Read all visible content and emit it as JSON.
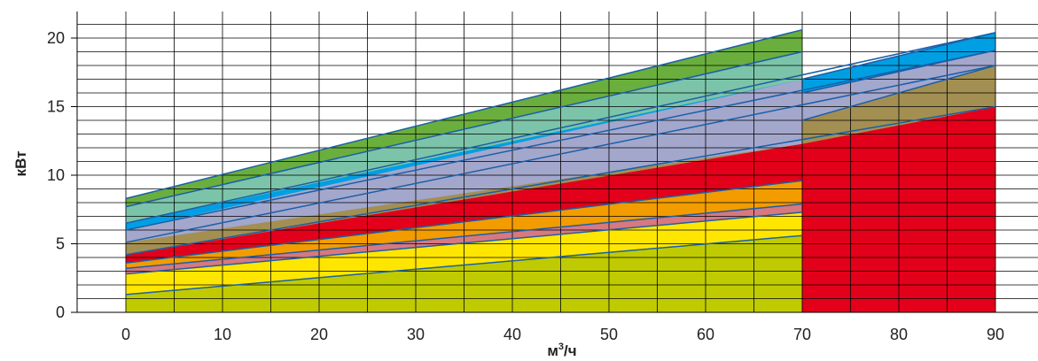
{
  "chart_data": {
    "type": "area",
    "ylabel": "кВт",
    "xlabel_base": "м",
    "xlabel_sup": "3",
    "xlabel_tail": "/ч",
    "xlim": [
      0,
      95
    ],
    "ylim": [
      0,
      20
    ],
    "x_ticks": [
      0,
      10,
      20,
      30,
      40,
      50,
      60,
      70,
      80,
      90
    ],
    "y_ticks": [
      0,
      5,
      10,
      15,
      20
    ],
    "grid": true,
    "bands": [
      {
        "color": "#bfcb00",
        "x": [
          0,
          70
        ],
        "lower": [
          0,
          0
        ],
        "upper": [
          1.3,
          5.6
        ]
      },
      {
        "color": "#ffe600",
        "x": [
          0,
          70
        ],
        "lower": [
          1.3,
          5.6
        ],
        "upper": [
          2.8,
          7.3
        ]
      },
      {
        "color": "#d8787f",
        "x": [
          0,
          70
        ],
        "lower": [
          2.8,
          7.3
        ],
        "upper": [
          3.2,
          7.9
        ]
      },
      {
        "color": "#f29c00",
        "x": [
          0,
          70
        ],
        "lower": [
          3.2,
          7.9
        ],
        "upper": [
          3.6,
          9.6
        ]
      },
      {
        "color": "#e2001a",
        "x": [
          0,
          70
        ],
        "lower": [
          3.6,
          9.6
        ],
        "upper": [
          4.2,
          12.3
        ]
      },
      {
        "color": "#a38f52",
        "x": [
          0,
          70
        ],
        "lower": [
          4.2,
          12.3
        ],
        "upper": [
          5.1,
          12.3
        ]
      },
      {
        "color": "#a3a7cc",
        "x": [
          0,
          70
        ],
        "lower": [
          5.1,
          12.3
        ],
        "upper": [
          6.0,
          17.0
        ]
      },
      {
        "color": "#009fe3",
        "x": [
          0,
          70
        ],
        "lower": [
          6.0,
          17.0
        ],
        "upper": [
          6.5,
          17.0
        ]
      },
      {
        "color": "#7cc4a9",
        "x": [
          0,
          70
        ],
        "lower": [
          6.5,
          17.0
        ],
        "upper": [
          7.7,
          19.0
        ]
      },
      {
        "color": "#6aaf3d",
        "x": [
          0,
          70
        ],
        "lower": [
          7.7,
          19.0
        ],
        "upper": [
          8.3,
          20.6
        ]
      },
      {
        "color": "#e2001a",
        "x": [
          70,
          90
        ],
        "lower": [
          0,
          0
        ],
        "upper": [
          12.3,
          15.0
        ]
      },
      {
        "color": "#a38f52",
        "x": [
          70,
          90
        ],
        "lower": [
          12.3,
          15.0
        ],
        "upper": [
          14.0,
          18.0
        ]
      },
      {
        "color": "#a3a7cc",
        "x": [
          70,
          90
        ],
        "lower": [
          14.0,
          18.0
        ],
        "upper": [
          16.0,
          19.1
        ]
      },
      {
        "color": "#009fe3",
        "x": [
          70,
          90
        ],
        "lower": [
          16.0,
          19.1
        ],
        "upper": [
          17.0,
          20.4
        ]
      }
    ],
    "line_color": "#1a5fa8",
    "lines": [
      {
        "x": [
          0,
          70
        ],
        "y": [
          1.3,
          5.6
        ]
      },
      {
        "x": [
          0,
          70
        ],
        "y": [
          2.8,
          7.3
        ]
      },
      {
        "x": [
          0,
          70
        ],
        "y": [
          3.2,
          7.9
        ]
      },
      {
        "x": [
          0,
          70
        ],
        "y": [
          3.6,
          9.6
        ]
      },
      {
        "x": [
          0,
          90
        ],
        "y": [
          4.2,
          15.0
        ]
      },
      {
        "x": [
          0,
          90
        ],
        "y": [
          5.1,
          18.0
        ]
      },
      {
        "x": [
          0,
          90
        ],
        "y": [
          6.0,
          19.1
        ]
      },
      {
        "x": [
          0,
          90
        ],
        "y": [
          6.5,
          20.4
        ]
      },
      {
        "x": [
          0,
          70
        ],
        "y": [
          7.7,
          19.0
        ]
      },
      {
        "x": [
          0,
          70
        ],
        "y": [
          8.3,
          20.6
        ]
      },
      {
        "x": [
          70,
          90
        ],
        "y": [
          14.0,
          18.0
        ]
      },
      {
        "x": [
          70,
          90
        ],
        "y": [
          16.0,
          19.1
        ]
      },
      {
        "x": [
          70,
          90
        ],
        "y": [
          17.0,
          20.4
        ]
      }
    ]
  }
}
